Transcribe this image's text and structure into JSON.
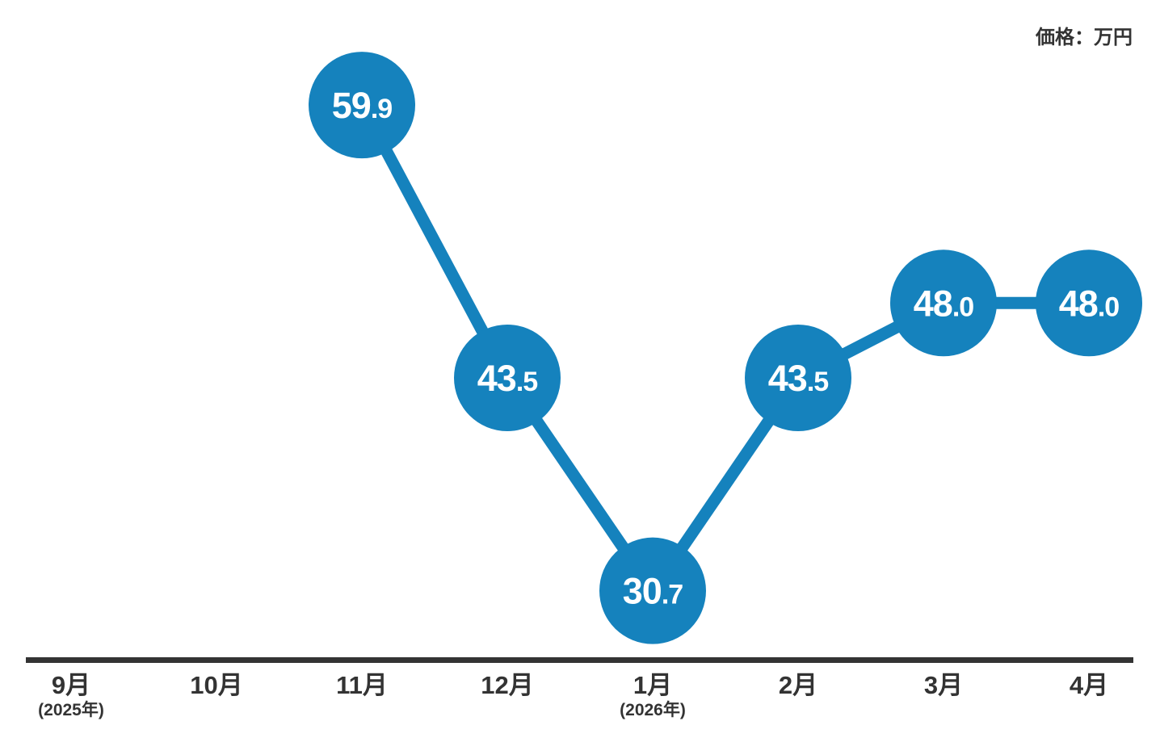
{
  "unit_label": "価格：万円",
  "colors": {
    "accent": "#1582bd",
    "axis": "#333333",
    "label_text": "#333333",
    "point_text": "#ffffff",
    "background": "#ffffff"
  },
  "chart_data": {
    "type": "line",
    "title": "",
    "unit_annotation": "価格：万円",
    "xlabel": "",
    "ylabel": "価格（万円）",
    "categories": [
      "9月",
      "10月",
      "11月",
      "12月",
      "1月",
      "2月",
      "3月",
      "4月"
    ],
    "category_sublabels": [
      "(2025年)",
      "",
      "",
      "",
      "(2026年)",
      "",
      "",
      ""
    ],
    "values": [
      null,
      null,
      59.9,
      43.5,
      30.7,
      43.5,
      48.0,
      48.0
    ],
    "point_labels": [
      null,
      null,
      "59.9",
      "43.5",
      "30.7",
      "43.5",
      "48.0",
      "48.0"
    ],
    "ylim": [
      26,
      66
    ],
    "grid": false,
    "legend": false,
    "marker": "large-circle-with-value"
  }
}
